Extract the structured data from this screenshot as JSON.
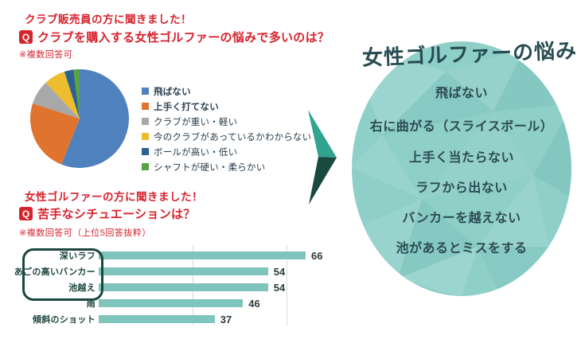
{
  "palette": {
    "red": "#d7232d",
    "bar": "#7fc4bd",
    "box": "#1b473e",
    "bar_label": "#1c453f",
    "value": "#2e3d3b",
    "legend": "#2b3f4e",
    "arrow_light": "#31a391",
    "arrow_dark": "#184a40",
    "bubble": "#8ecfc8",
    "bubble_text": "#2c4b52",
    "title": "#274b52"
  },
  "survey1": {
    "header": "クラブ販売員の方に聞きました！",
    "q_badge": "Q",
    "question": "クラブを購入する女性ゴルファーの悩みで多いのは？",
    "note": "※複数回答可"
  },
  "survey2": {
    "header": "女性ゴルファーの方に聞きました！",
    "q_badge": "Q",
    "question": "苦手なシチュエーションは？",
    "note": "※複数回答可（上位5回答抜粋）"
  },
  "chart_data": [
    {
      "type": "pie",
      "labels": [
        "飛ばない",
        "上手く打てない",
        "クラブが重い・軽い",
        "今のクラブがあっているかわからない",
        "ボールが高い・低い",
        "シャフトが硬い・柔らかい"
      ],
      "values_percent_estimated": [
        56,
        24,
        8,
        7,
        3,
        2
      ],
      "colors": [
        "#4f81bd",
        "#e0742f",
        "#a8a8a8",
        "#eebd2e",
        "#2d6093",
        "#58a145"
      ],
      "start_angle_deg": 0,
      "direction": "clockwise",
      "legend_position": "right",
      "bold_legend_indices": [
        0,
        1
      ]
    },
    {
      "type": "bar",
      "orientation": "horizontal",
      "categories": [
        "深いラフ",
        "あごの高いバンカー",
        "池越え",
        "雨",
        "傾斜のショット"
      ],
      "values": [
        66,
        54,
        54,
        46,
        37
      ],
      "xlim": [
        0,
        70
      ],
      "gridline_values": [
        30,
        60
      ],
      "bar_color": "#7fc4bd",
      "value_labels_shown": true,
      "highlighted_categories": [
        "深いラフ",
        "あごの高いバンカー",
        "池越え"
      ]
    }
  ],
  "summary_bubble": {
    "title": "女性ゴルファーの悩み",
    "items": [
      "飛ばない",
      "右に曲がる（スライスボール）",
      "上手く当たらない",
      "ラフから出ない",
      "バンカーを越えない",
      "池があるとミスをする"
    ]
  }
}
